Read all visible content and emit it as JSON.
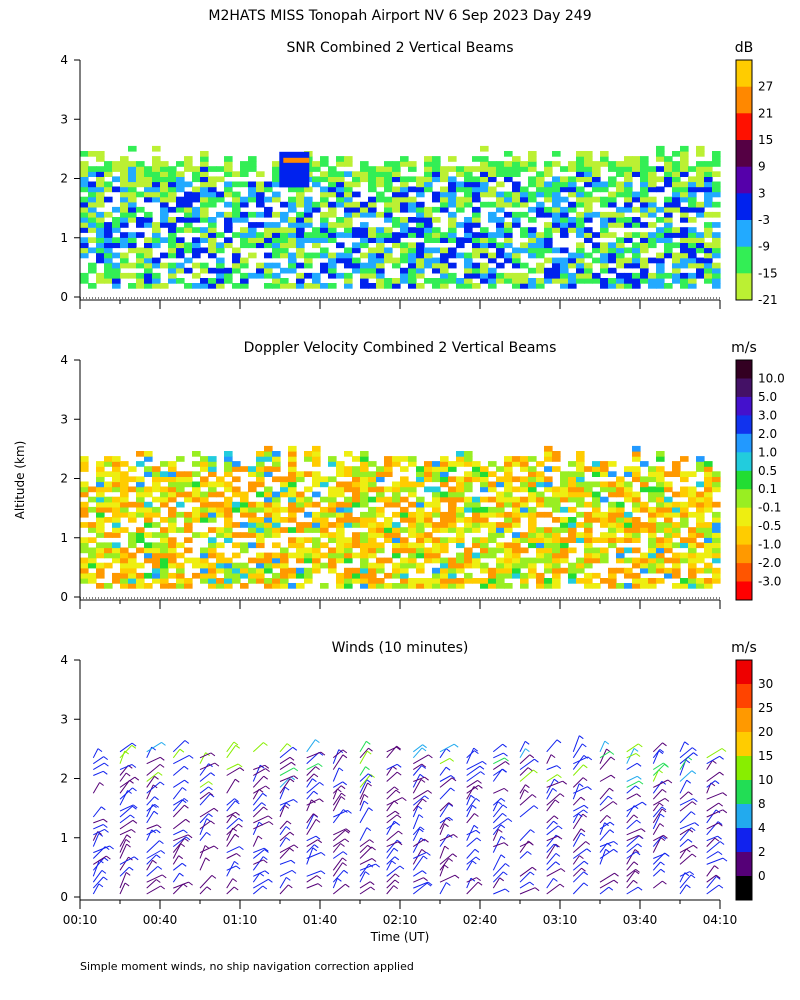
{
  "page": {
    "title": "M2HATS MISS Tonopah Airport NV   6 Sep 2023 Day 249",
    "ylabel": "Altitude (km)",
    "xlabel": "Time (UT)",
    "footnote": "Simple moment winds, no ship navigation correction applied"
  },
  "chart_data": [
    {
      "type": "heatmap",
      "title": "SNR Combined 2 Vertical Beams",
      "ylim": [
        0,
        4
      ],
      "yticks": [
        "0",
        "1",
        "2",
        "3",
        "4"
      ],
      "x_ticks": [
        "00:10",
        "00:40",
        "01:10",
        "01:40",
        "02:10",
        "02:40",
        "03:10",
        "03:40",
        "04:10"
      ],
      "colorbar": {
        "unit": "dB",
        "labels": [
          "27",
          "21",
          "15",
          "9",
          "3",
          "-3",
          "-9",
          "-15",
          "-21"
        ],
        "colors": [
          "#ffcc00",
          "#ff8800",
          "#ff1100",
          "#550044",
          "#5500aa",
          "#0022ee",
          "#22aaff",
          "#33ee55",
          "#bbf033"
        ]
      },
      "notes": "Echo layer between ~0.15 and ~2.3 km from 00:10 to 04:10; strong returns near 2.2 km around 01:30."
    },
    {
      "type": "heatmap",
      "title": "Doppler Velocity Combined 2 Vertical Beams",
      "ylim": [
        0,
        4
      ],
      "yticks": [
        "0",
        "1",
        "2",
        "3",
        "4"
      ],
      "x_ticks": [
        "00:10",
        "00:40",
        "01:10",
        "01:40",
        "02:10",
        "02:40",
        "03:10",
        "03:40",
        "04:10"
      ],
      "colorbar": {
        "unit": "m/s",
        "labels": [
          "10.0",
          "5.0",
          "3.0",
          "2.0",
          "1.0",
          "0.5",
          "0.1",
          "-0.1",
          "-0.5",
          "-1.0",
          "-2.0",
          "-3.0"
        ],
        "colors": [
          "#330022",
          "#441166",
          "#4411cc",
          "#1133ee",
          "#2299ff",
          "#22ccdd",
          "#22dd33",
          "#99ee22",
          "#eeee11",
          "#ffcc00",
          "#ff9900",
          "#ff5500",
          "#ff0000"
        ]
      },
      "notes": "Mostly small downward velocities (-0.1 to -1.0 m/s) below 2.3 km."
    },
    {
      "type": "scatter",
      "title": "Winds (10 minutes)",
      "ylim": [
        0,
        4
      ],
      "yticks": [
        "0",
        "1",
        "2",
        "3",
        "4"
      ],
      "x_ticks": [
        "00:10",
        "00:40",
        "01:10",
        "01:40",
        "02:10",
        "02:40",
        "03:10",
        "03:40",
        "04:10"
      ],
      "colorbar": {
        "unit": "m/s",
        "labels": [
          "30",
          "25",
          "20",
          "15",
          "10",
          "8",
          "4",
          "2",
          "0"
        ],
        "colors": [
          "#ee0000",
          "#ff4400",
          "#ff9900",
          "#ffcc00",
          "#88ee00",
          "#22dd55",
          "#22aaee",
          "#1122ee",
          "#550077",
          "#000000"
        ]
      },
      "profile_times": [
        "00:15",
        "00:25",
        "00:35",
        "00:45",
        "00:55",
        "01:05",
        "01:15",
        "01:25",
        "01:35",
        "01:45",
        "01:55",
        "02:05",
        "02:15",
        "02:25",
        "02:35",
        "02:45",
        "02:55",
        "03:05",
        "03:15",
        "03:25",
        "03:35",
        "03:45",
        "03:55",
        "04:05"
      ],
      "notes": "Wind barbs every 10 minutes up to ~2.5 km, mostly 4-8 m/s."
    }
  ]
}
